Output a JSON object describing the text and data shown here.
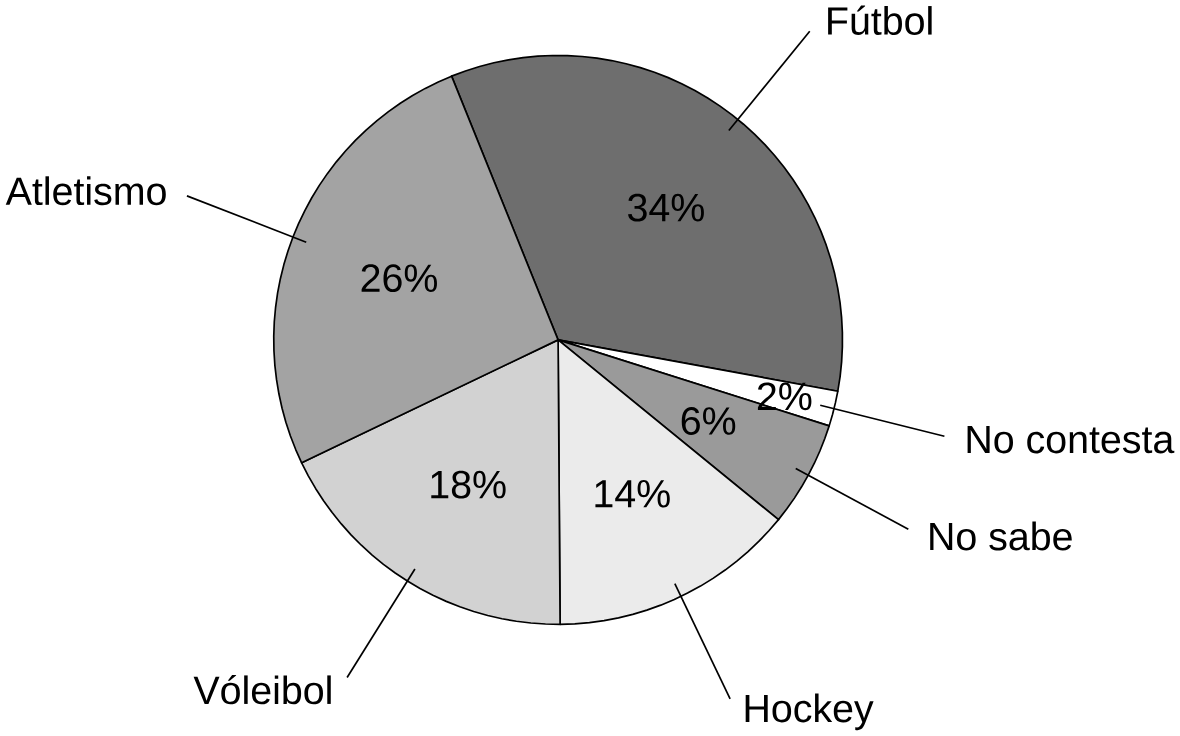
{
  "chart_data": {
    "type": "pie",
    "categories": [
      "Fútbol",
      "No contesta",
      "No sabe",
      "Hockey",
      "Vóleibol",
      "Atletismo"
    ],
    "values": [
      34,
      2,
      6,
      14,
      18,
      26
    ],
    "value_labels": [
      "34%",
      "2%",
      "6%",
      "14%",
      "18%",
      "26%"
    ],
    "colors": [
      "#6e6e6e",
      "#ffffff",
      "#9a9a9a",
      "#ebebeb",
      "#d2d2d2",
      "#a3a3a3"
    ]
  }
}
